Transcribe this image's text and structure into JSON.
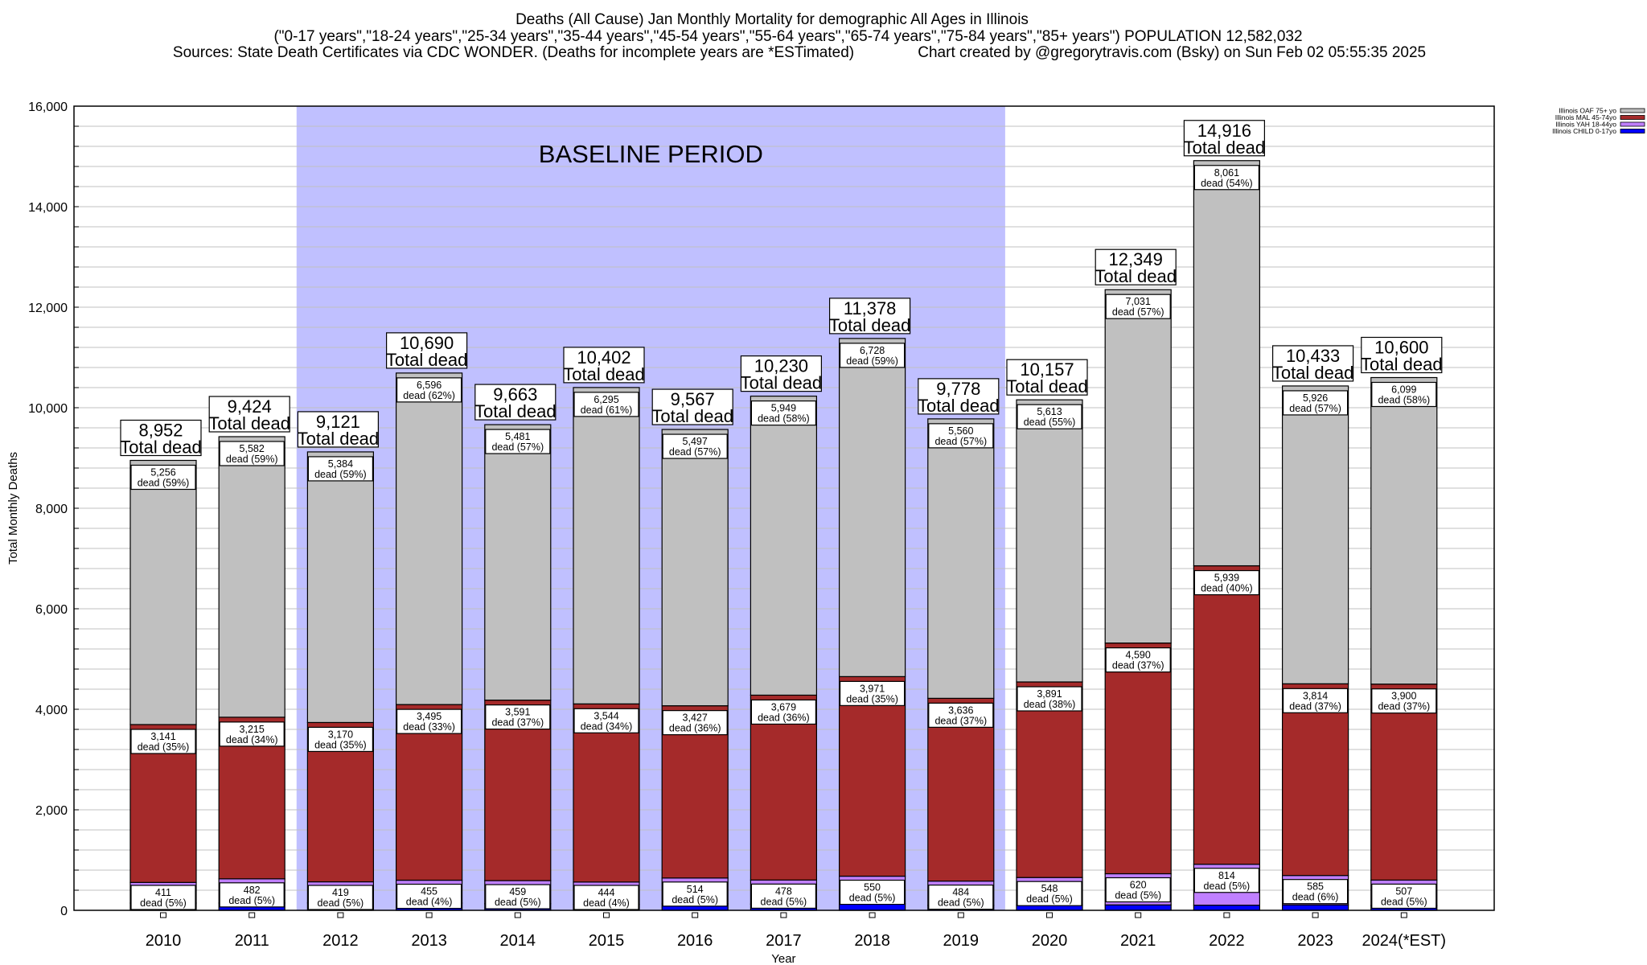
{
  "header": {
    "title_line1": "Deaths (All Cause) Jan Monthly Mortality for demographic All Ages in Illinois",
    "title_line2": "(\"0-17 years\",\"18-24 years\",\"25-34 years\",\"35-44 years\",\"45-54 years\",\"55-64 years\",\"65-74 years\",\"75-84 years\",\"85+ years\") POPULATION 12,582,032",
    "title_line3": "Sources: State Death Certificates via CDC WONDER. (Deaths for incomplete years are *ESTimated)               Chart created by @gregorytravis.com (Bsky) on Sun Feb 02 05:55:35 2025"
  },
  "colors": {
    "oaf": "#c0c0c0",
    "mal": "#a52a2a",
    "yah": "#c080ff",
    "child": "#0000ff",
    "baseline_band": "#c0c0ff",
    "grid": "#c0c0c0"
  },
  "chart_data": {
    "type": "bar",
    "stacked": true,
    "xlabel": "Year",
    "ylabel": "Total Monthly Deaths",
    "ylim": [
      0,
      16000
    ],
    "yticks": [
      0,
      2000,
      4000,
      6000,
      8000,
      10000,
      12000,
      14000,
      16000
    ],
    "ytick_labels": [
      "0",
      "2,000",
      "4,000",
      "6,000",
      "8,000",
      "10,000",
      "12,000",
      "14,000",
      "16,000"
    ],
    "grid": true,
    "legend_position": "top-right",
    "categories": [
      "2010",
      "2011",
      "2012",
      "2013",
      "2014",
      "2015",
      "2016",
      "2017",
      "2018",
      "2019",
      "2020",
      "2021",
      "2022",
      "2023",
      "2024(*EST)"
    ],
    "totals": [
      8952,
      9424,
      9121,
      10690,
      9663,
      10402,
      9567,
      10230,
      11378,
      9778,
      10157,
      12349,
      14916,
      10433,
      10600
    ],
    "total_labels": [
      "8,952",
      "9,424",
      "9,121",
      "10,690",
      "9,663",
      "10,402",
      "9,567",
      "10,230",
      "11,378",
      "9,778",
      "10,157",
      "12,349",
      "14,916",
      "10,433",
      "10,600"
    ],
    "total_suffix": "Total dead",
    "series": [
      {
        "key": "child",
        "name": "Illinois CHILD 0-17yo",
        "values": [
          144,
          145,
          148,
          144,
          132,
          119,
          129,
          124,
          129,
          98,
          105,
          108,
          102,
          108,
          94
        ]
      },
      {
        "key": "yah",
        "name": "Illinois YAH 18-44yo",
        "values": [
          411,
          482,
          419,
          455,
          459,
          444,
          514,
          478,
          550,
          484,
          548,
          620,
          814,
          585,
          507
        ],
        "labels": [
          "411",
          "482",
          "419",
          "455",
          "459",
          "444",
          "514",
          "478",
          "550",
          "484",
          "548",
          "620",
          "814",
          "585",
          "507"
        ],
        "pct_labels": [
          "dead (5%)",
          "dead (5%)",
          "dead (5%)",
          "dead (4%)",
          "dead (5%)",
          "dead (4%)",
          "dead (5%)",
          "dead (5%)",
          "dead (5%)",
          "dead (5%)",
          "dead (5%)",
          "dead (5%)",
          "dead (5%)",
          "dead (6%)",
          "dead (5%)"
        ]
      },
      {
        "key": "mal",
        "name": "Illinois MAL 45-74yo",
        "values": [
          3141,
          3215,
          3170,
          3495,
          3591,
          3544,
          3427,
          3679,
          3971,
          3636,
          3891,
          4590,
          5939,
          3814,
          3900
        ],
        "labels": [
          "3,141",
          "3,215",
          "3,170",
          "3,495",
          "3,591",
          "3,544",
          "3,427",
          "3,679",
          "3,971",
          "3,636",
          "3,891",
          "4,590",
          "5,939",
          "3,814",
          "3,900"
        ],
        "pct_labels": [
          "dead (35%)",
          "dead (34%)",
          "dead (35%)",
          "dead (33%)",
          "dead (37%)",
          "dead (34%)",
          "dead (36%)",
          "dead (36%)",
          "dead (35%)",
          "dead (37%)",
          "dead (38%)",
          "dead (37%)",
          "dead (40%)",
          "dead (37%)",
          "dead (37%)"
        ]
      },
      {
        "key": "oaf",
        "name": "Illinois OAF 75+ yo",
        "values": [
          5256,
          5582,
          5384,
          6596,
          5481,
          6295,
          5497,
          5949,
          6728,
          5560,
          5613,
          7031,
          8061,
          5926,
          6099
        ],
        "labels": [
          "5,256",
          "5,582",
          "5,384",
          "6,596",
          "5,481",
          "6,295",
          "5,497",
          "5,949",
          "6,728",
          "5,560",
          "5,613",
          "7,031",
          "8,061",
          "5,926",
          "6,099"
        ],
        "pct_labels": [
          "dead (59%)",
          "dead (59%)",
          "dead (59%)",
          "dead (62%)",
          "dead (57%)",
          "dead (61%)",
          "dead (57%)",
          "dead (58%)",
          "dead (59%)",
          "dead (57%)",
          "dead (55%)",
          "dead (57%)",
          "dead (54%)",
          "dead (57%)",
          "dead (58%)"
        ]
      }
    ],
    "legend_order": [
      "oaf",
      "mal",
      "yah",
      "child"
    ],
    "annotations": [
      {
        "text": "BASELINE PERIOD",
        "x_from": "2012",
        "x_to": "2019"
      }
    ]
  }
}
